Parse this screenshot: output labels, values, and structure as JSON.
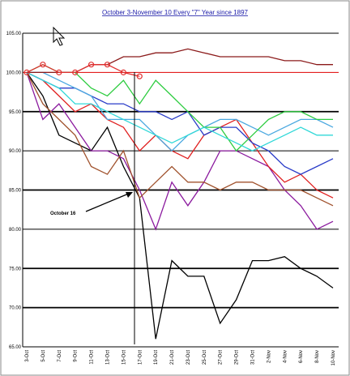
{
  "chart_data": {
    "type": "line",
    "title": "October 3-November 10 Every \"7\" Year since 1897",
    "annotation": "October 16",
    "categories": [
      "3-Oct",
      "5-Oct",
      "7-Oct",
      "9-Oct",
      "11-Oct",
      "13-Oct",
      "15-Oct",
      "17-Oct",
      "19-Oct",
      "21-Oct",
      "23-Oct",
      "25-Oct",
      "27-Oct",
      "29-Oct",
      "31-Oct",
      "2-Nov",
      "4-Nov",
      "6-Nov",
      "8-Nov",
      "10-Nov"
    ],
    "ylim": [
      65,
      105
    ],
    "yticks": [
      {
        "value": 65,
        "label": "65.00"
      },
      {
        "value": 70,
        "label": "70.00"
      },
      {
        "value": 75,
        "label": "75.00"
      },
      {
        "value": 80,
        "label": "80.00"
      },
      {
        "value": 85,
        "label": "85.00"
      },
      {
        "value": 90,
        "label": "90.00"
      },
      {
        "value": 95,
        "label": "95.00"
      },
      {
        "value": 100,
        "label": "100.00"
      },
      {
        "value": 105,
        "label": "105.00"
      }
    ],
    "grid": true,
    "series": [
      {
        "color": "#000000",
        "values": [
          100,
          97,
          92,
          91,
          90,
          93,
          88,
          84,
          66,
          76,
          74,
          74,
          68,
          71,
          76,
          76,
          76.5,
          75,
          74,
          72.5
        ]
      },
      {
        "color": "#8b1a9e",
        "values": [
          100,
          94,
          96,
          93,
          90,
          90,
          89,
          85,
          80,
          86,
          83,
          86,
          90,
          90,
          89,
          88,
          85,
          83,
          80,
          81
        ]
      },
      {
        "color": "#a0522d",
        "values": [
          100,
          96,
          94,
          92,
          88,
          87,
          90,
          84,
          86,
          88,
          86,
          86,
          85,
          86,
          86,
          85,
          85,
          85,
          84,
          83
        ]
      },
      {
        "color": "#e02020",
        "values": [
          100,
          99,
          97,
          95,
          96,
          94,
          93,
          90,
          92,
          90,
          89,
          92,
          93,
          94,
          91,
          88,
          86,
          87,
          85,
          84
        ]
      },
      {
        "color": "#2a3cc8",
        "values": [
          100,
          99,
          98,
          98,
          97,
          96,
          96,
          95,
          95,
          94,
          95,
          92,
          93,
          93,
          91,
          90,
          88,
          87,
          88,
          89
        ]
      },
      {
        "color": "#4aa8e0",
        "values": [
          100,
          100,
          99,
          98,
          97,
          94,
          94,
          94,
          92,
          90,
          92,
          93,
          94,
          94,
          93,
          92,
          93,
          94,
          94,
          93
        ]
      },
      {
        "color": "#2ecc40",
        "values": [
          100,
          101,
          100,
          100,
          98,
          97,
          99,
          96,
          99,
          97,
          95,
          93,
          93,
          90,
          92,
          94,
          95,
          95,
          94,
          94
        ]
      },
      {
        "color": "#30d8d8",
        "values": [
          100,
          99,
          98,
          96,
          96,
          95,
          94,
          93,
          92,
          91,
          92,
          93,
          92,
          91,
          90,
          91,
          92,
          93,
          92,
          92
        ]
      },
      {
        "color": "#8b1a1a",
        "values": [
          100,
          100,
          100,
          100,
          101,
          101,
          102,
          102,
          102.5,
          102.5,
          103,
          102.5,
          102,
          102,
          102,
          102,
          101.5,
          101.5,
          101,
          101
        ]
      },
      {
        "color": "#e03030",
        "marker": "circle",
        "values": [
          100,
          101,
          100,
          100,
          101,
          101,
          100,
          99.5,
          null,
          null,
          null,
          null,
          null,
          null,
          null,
          null,
          null,
          null,
          null,
          null
        ]
      }
    ]
  }
}
